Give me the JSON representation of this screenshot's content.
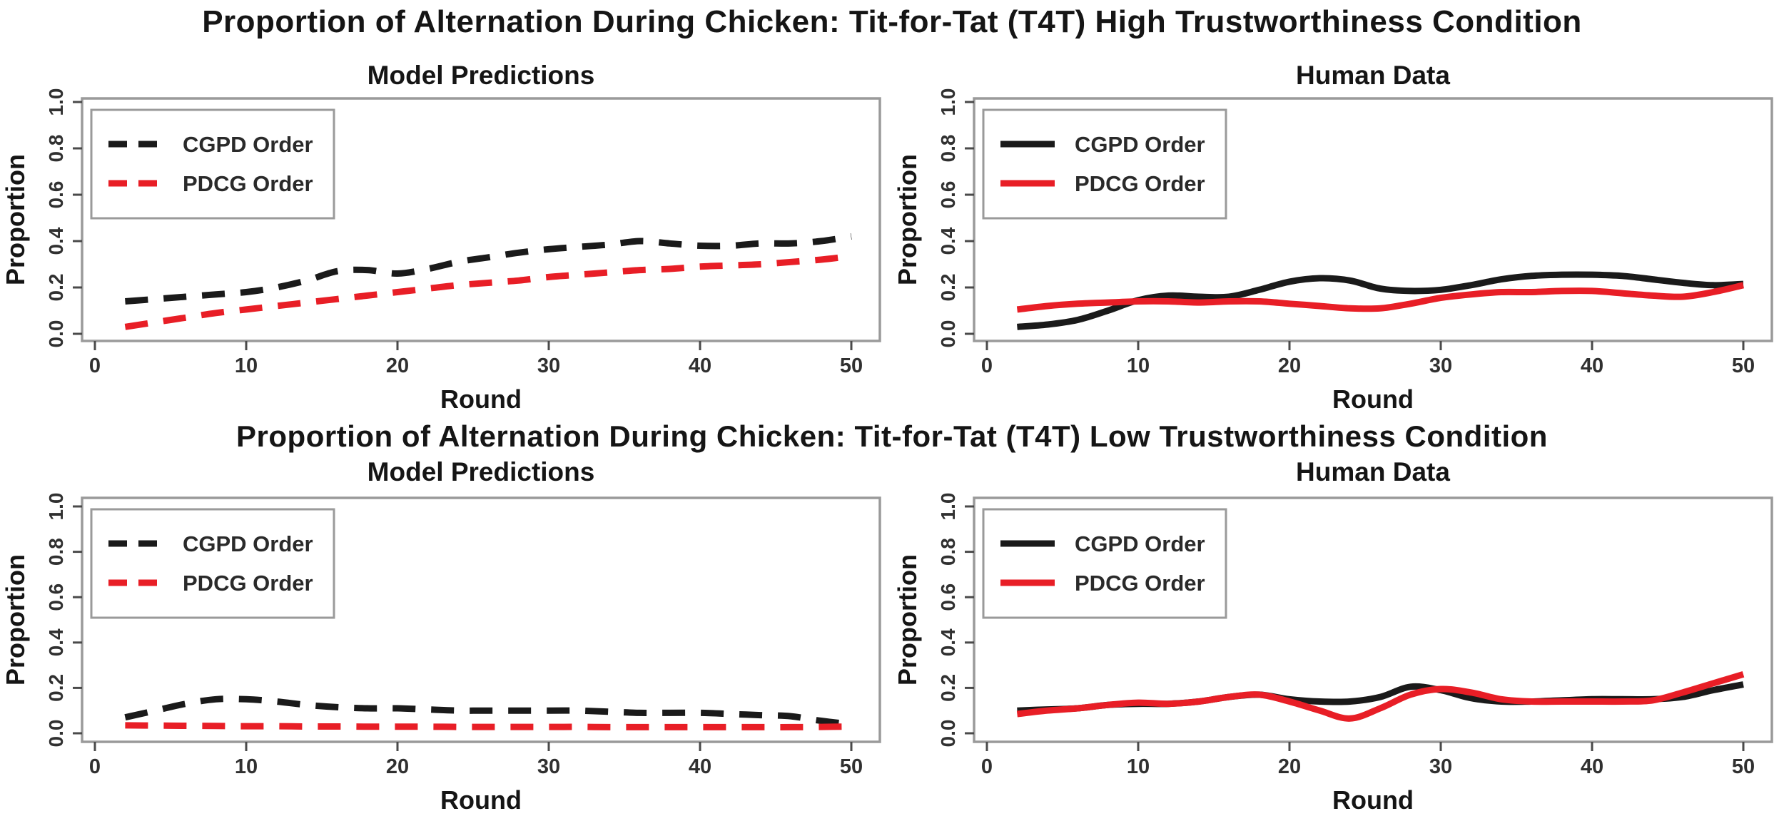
{
  "titles": {
    "high": "Proportion of Alternation During Chicken: Tit-for-Tat (T4T) High Trustworthiness Condition",
    "low": "Proportion of Alternation During Chicken: Tit-for-Tat (T4T) Low Trustworthiness Condition"
  },
  "colors": {
    "cgpd": "#1a1a1a",
    "pdcg": "#e81e26",
    "panel_border": "#9a9a9a",
    "tick": "#4a4a4a",
    "tick_label": "#303030",
    "text": "#151515",
    "legend_border": "#9a9a9a"
  },
  "chart_data": [
    {
      "type": "line",
      "position": "top-left",
      "condition": "High Trustworthiness",
      "title": "Model Predictions",
      "xlabel": "Round",
      "ylabel": "Proportion",
      "xlim": [
        0,
        52
      ],
      "ylim": [
        0,
        1
      ],
      "x_ticks": [
        0,
        10,
        20,
        30,
        40,
        50
      ],
      "y_ticks": [
        "0.0",
        "0.2",
        "0.4",
        "0.6",
        "0.8",
        "1.0"
      ],
      "line_style": "dashed",
      "legend_position": "top-left",
      "series": [
        {
          "name": "CGPD Order",
          "color": "#1a1a1a",
          "x": [
            2,
            4,
            6,
            8,
            10,
            12,
            14,
            16,
            18,
            20,
            22,
            24,
            26,
            28,
            30,
            32,
            34,
            36,
            38,
            40,
            42,
            44,
            46,
            48,
            50
          ],
          "y": [
            0.14,
            0.15,
            0.16,
            0.17,
            0.18,
            0.2,
            0.23,
            0.27,
            0.275,
            0.26,
            0.28,
            0.31,
            0.33,
            0.35,
            0.365,
            0.375,
            0.385,
            0.4,
            0.39,
            0.38,
            0.38,
            0.39,
            0.39,
            0.4,
            0.42
          ]
        },
        {
          "name": "PDCG Order",
          "color": "#e81e26",
          "x": [
            2,
            4,
            6,
            8,
            10,
            12,
            14,
            16,
            18,
            20,
            22,
            24,
            26,
            28,
            30,
            32,
            34,
            36,
            38,
            40,
            42,
            44,
            46,
            48,
            50
          ],
          "y": [
            0.03,
            0.05,
            0.07,
            0.09,
            0.105,
            0.12,
            0.135,
            0.15,
            0.165,
            0.18,
            0.195,
            0.21,
            0.22,
            0.23,
            0.245,
            0.255,
            0.265,
            0.275,
            0.28,
            0.29,
            0.295,
            0.3,
            0.31,
            0.32,
            0.335
          ]
        }
      ]
    },
    {
      "type": "line",
      "position": "top-right",
      "condition": "High Trustworthiness",
      "title": "Human Data",
      "xlabel": "Round",
      "ylabel": "Proportion",
      "xlim": [
        0,
        52
      ],
      "ylim": [
        0,
        1
      ],
      "x_ticks": [
        0,
        10,
        20,
        30,
        40,
        50
      ],
      "y_ticks": [
        "0.0",
        "0.2",
        "0.4",
        "0.6",
        "0.8",
        "1.0"
      ],
      "line_style": "solid",
      "legend_position": "top-left",
      "series": [
        {
          "name": "CGPD Order",
          "color": "#1a1a1a",
          "x": [
            2,
            4,
            6,
            8,
            10,
            12,
            14,
            16,
            18,
            20,
            22,
            24,
            26,
            28,
            30,
            32,
            34,
            36,
            38,
            40,
            42,
            44,
            46,
            48,
            50
          ],
          "y": [
            0.03,
            0.04,
            0.06,
            0.1,
            0.145,
            0.165,
            0.16,
            0.16,
            0.19,
            0.225,
            0.24,
            0.23,
            0.195,
            0.185,
            0.19,
            0.21,
            0.235,
            0.25,
            0.255,
            0.255,
            0.25,
            0.235,
            0.22,
            0.21,
            0.215
          ]
        },
        {
          "name": "PDCG Order",
          "color": "#e81e26",
          "x": [
            2,
            4,
            6,
            8,
            10,
            12,
            14,
            16,
            18,
            20,
            22,
            24,
            26,
            28,
            30,
            32,
            34,
            36,
            38,
            40,
            42,
            44,
            46,
            48,
            50
          ],
          "y": [
            0.105,
            0.12,
            0.13,
            0.135,
            0.14,
            0.14,
            0.135,
            0.14,
            0.14,
            0.13,
            0.12,
            0.11,
            0.11,
            0.13,
            0.155,
            0.17,
            0.18,
            0.18,
            0.185,
            0.185,
            0.175,
            0.165,
            0.16,
            0.18,
            0.21
          ]
        }
      ]
    },
    {
      "type": "line",
      "position": "bottom-left",
      "condition": "Low Trustworthiness",
      "title": "Model Predictions",
      "xlabel": "Round",
      "ylabel": "Proportion",
      "xlim": [
        0,
        52
      ],
      "ylim": [
        0,
        1
      ],
      "x_ticks": [
        0,
        10,
        20,
        30,
        40,
        50
      ],
      "y_ticks": [
        "0.0",
        "0.2",
        "0.4",
        "0.6",
        "0.8",
        "1.0"
      ],
      "line_style": "dashed",
      "legend_position": "top-left",
      "series": [
        {
          "name": "CGPD Order",
          "color": "#1a1a1a",
          "x": [
            2,
            4,
            6,
            8,
            10,
            12,
            14,
            16,
            18,
            20,
            22,
            24,
            26,
            28,
            30,
            32,
            34,
            36,
            38,
            40,
            42,
            44,
            46,
            48,
            50
          ],
          "y": [
            0.07,
            0.1,
            0.13,
            0.15,
            0.15,
            0.14,
            0.125,
            0.115,
            0.11,
            0.11,
            0.105,
            0.1,
            0.1,
            0.1,
            0.1,
            0.1,
            0.095,
            0.09,
            0.09,
            0.09,
            0.085,
            0.08,
            0.075,
            0.055,
            0.04
          ]
        },
        {
          "name": "PDCG Order",
          "color": "#e81e26",
          "x": [
            2,
            4,
            6,
            8,
            10,
            12,
            14,
            16,
            18,
            20,
            22,
            24,
            26,
            28,
            30,
            32,
            34,
            36,
            38,
            40,
            42,
            44,
            46,
            48,
            50
          ],
          "y": [
            0.035,
            0.034,
            0.033,
            0.032,
            0.031,
            0.031,
            0.03,
            0.03,
            0.029,
            0.029,
            0.029,
            0.028,
            0.028,
            0.028,
            0.028,
            0.028,
            0.027,
            0.027,
            0.027,
            0.027,
            0.027,
            0.027,
            0.027,
            0.028,
            0.03
          ]
        }
      ]
    },
    {
      "type": "line",
      "position": "bottom-right",
      "condition": "Low Trustworthiness",
      "title": "Human Data",
      "xlabel": "Round",
      "ylabel": "Proportion",
      "xlim": [
        0,
        52
      ],
      "ylim": [
        0,
        1
      ],
      "x_ticks": [
        0,
        10,
        20,
        30,
        40,
        50
      ],
      "y_ticks": [
        "0.0",
        "0.2",
        "0.4",
        "0.6",
        "0.8",
        "1.0"
      ],
      "line_style": "solid",
      "legend_position": "top-left",
      "series": [
        {
          "name": "CGPD Order",
          "color": "#1a1a1a",
          "x": [
            2,
            4,
            6,
            8,
            10,
            12,
            14,
            16,
            18,
            20,
            22,
            24,
            26,
            28,
            30,
            32,
            34,
            36,
            38,
            40,
            42,
            44,
            46,
            48,
            50
          ],
          "y": [
            0.1,
            0.105,
            0.11,
            0.125,
            0.13,
            0.13,
            0.14,
            0.16,
            0.17,
            0.15,
            0.14,
            0.14,
            0.16,
            0.205,
            0.19,
            0.155,
            0.14,
            0.14,
            0.145,
            0.15,
            0.15,
            0.15,
            0.16,
            0.19,
            0.215
          ]
        },
        {
          "name": "PDCG Order",
          "color": "#e81e26",
          "x": [
            2,
            4,
            6,
            8,
            10,
            12,
            14,
            16,
            18,
            20,
            22,
            24,
            26,
            28,
            30,
            32,
            34,
            36,
            38,
            40,
            42,
            44,
            46,
            48,
            50
          ],
          "y": [
            0.085,
            0.1,
            0.11,
            0.125,
            0.135,
            0.13,
            0.14,
            0.16,
            0.17,
            0.14,
            0.1,
            0.065,
            0.11,
            0.17,
            0.195,
            0.18,
            0.15,
            0.14,
            0.14,
            0.14,
            0.14,
            0.145,
            0.18,
            0.22,
            0.26
          ]
        }
      ]
    }
  ]
}
